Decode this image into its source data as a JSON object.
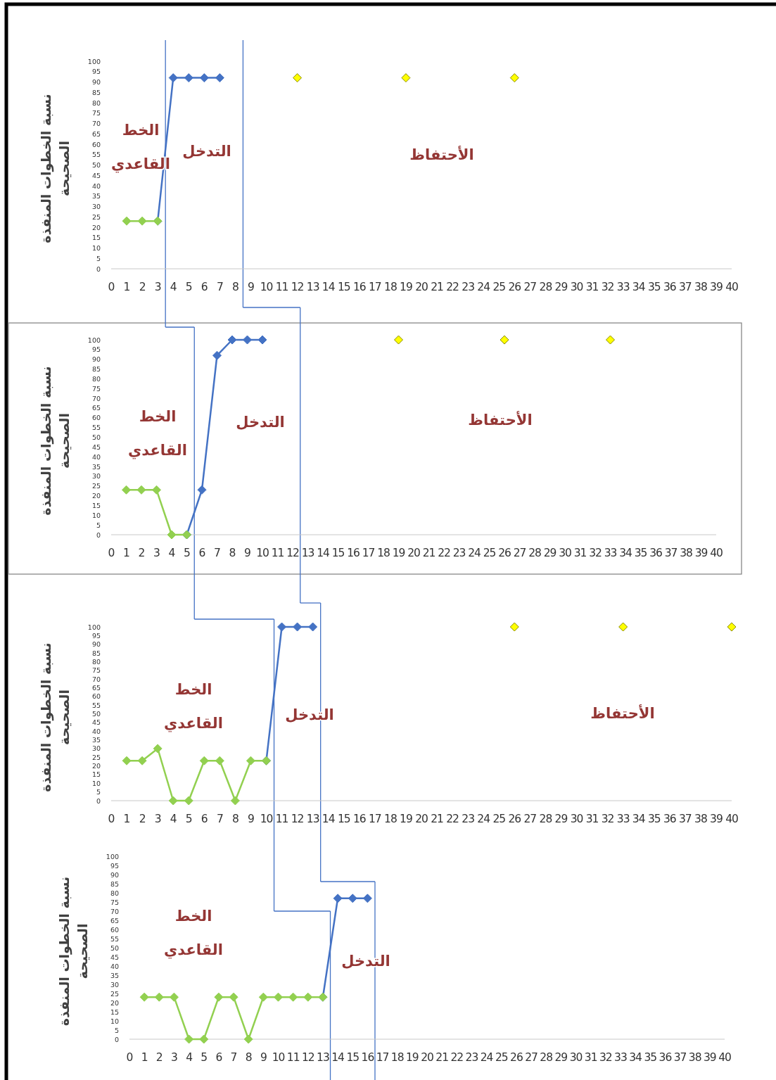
{
  "chart_data": [
    {
      "type": "line",
      "ylabel": "نسبة الخطوات المنفذة الصحيحة",
      "xlim": [
        0,
        40
      ],
      "ylim": [
        0,
        100
      ],
      "xticks": [
        0,
        1,
        2,
        3,
        4,
        5,
        6,
        7,
        8,
        9,
        10,
        11,
        12,
        13,
        14,
        15,
        16,
        17,
        18,
        19,
        20,
        21,
        22,
        23,
        24,
        25,
        26,
        27,
        28,
        29,
        30,
        31,
        32,
        33,
        34,
        35,
        36,
        37,
        38,
        39,
        40
      ],
      "yticks": [
        0,
        5,
        10,
        15,
        20,
        25,
        30,
        35,
        40,
        45,
        50,
        55,
        60,
        65,
        70,
        75,
        80,
        85,
        90,
        95,
        100
      ],
      "grid": false,
      "marker": "diamond",
      "series": [
        {
          "type": "line",
          "color": "#92d050",
          "x": [
            1,
            2,
            3
          ],
          "values": [
            23,
            23,
            23
          ]
        },
        {
          "type": "line",
          "color": "#4472c4",
          "x": [
            3,
            4,
            5,
            6,
            7
          ],
          "values": [
            23,
            92,
            92,
            92,
            92
          ]
        },
        {
          "type": "scatter",
          "color": "#ffff00",
          "x": [
            12,
            19,
            26
          ],
          "values": [
            92,
            92,
            92
          ]
        }
      ],
      "ref_lines": [
        {
          "axis": "x",
          "value": 3.5,
          "color": "#4472c4"
        },
        {
          "axis": "x",
          "value": 8.5,
          "color": "#4472c4"
        }
      ],
      "annotations": [
        "الخط القاعدي",
        "التدخل",
        "الأحتفاظ"
      ]
    },
    {
      "type": "line",
      "ylabel": "نسبة الخطوات المنفذة الصحيحة",
      "xlim": [
        0,
        40
      ],
      "ylim": [
        0,
        100
      ],
      "xticks": [
        0,
        1,
        2,
        3,
        4,
        5,
        6,
        7,
        8,
        9,
        10,
        11,
        12,
        13,
        14,
        15,
        16,
        17,
        18,
        19,
        20,
        21,
        22,
        23,
        24,
        25,
        26,
        27,
        28,
        29,
        30,
        31,
        32,
        33,
        34,
        35,
        36,
        37,
        38,
        39,
        40
      ],
      "yticks": [
        0,
        5,
        10,
        15,
        20,
        25,
        30,
        35,
        40,
        45,
        50,
        55,
        60,
        65,
        70,
        75,
        80,
        85,
        90,
        95,
        100
      ],
      "grid": false,
      "marker": "diamond",
      "series": [
        {
          "type": "line",
          "color": "#92d050",
          "x": [
            1,
            2,
            3,
            4,
            5
          ],
          "values": [
            23,
            23,
            23,
            0,
            0
          ]
        },
        {
          "type": "line",
          "color": "#4472c4",
          "x": [
            5,
            6,
            7,
            8,
            9,
            10
          ],
          "values": [
            0,
            23,
            92,
            100,
            100,
            100
          ]
        },
        {
          "type": "scatter",
          "color": "#ffff00",
          "x": [
            19,
            26,
            33
          ],
          "values": [
            100,
            100,
            100
          ]
        }
      ],
      "ref_lines": [
        {
          "axis": "x",
          "value": 5.5,
          "color": "#4472c4"
        },
        {
          "axis": "x",
          "value": 12.5,
          "color": "#4472c4"
        }
      ],
      "annotations": [
        "الخط القاعدي",
        "التدخل",
        "الأحتفاظ"
      ]
    },
    {
      "type": "line",
      "ylabel": "نسبة الخطوات المنفذة الصحيحة",
      "xlim": [
        0,
        40
      ],
      "ylim": [
        0,
        100
      ],
      "xticks": [
        0,
        1,
        2,
        3,
        4,
        5,
        6,
        7,
        8,
        9,
        10,
        11,
        12,
        13,
        14,
        15,
        16,
        17,
        18,
        19,
        20,
        21,
        22,
        23,
        24,
        25,
        26,
        27,
        28,
        29,
        30,
        31,
        32,
        33,
        34,
        35,
        36,
        37,
        38,
        39,
        40
      ],
      "yticks": [
        0,
        5,
        10,
        15,
        20,
        25,
        30,
        35,
        40,
        45,
        50,
        55,
        60,
        65,
        70,
        75,
        80,
        85,
        90,
        95,
        100
      ],
      "grid": false,
      "marker": "diamond",
      "series": [
        {
          "type": "line",
          "color": "#92d050",
          "x": [
            1,
            2,
            3,
            4,
            5,
            6,
            7,
            8,
            9,
            10
          ],
          "values": [
            23,
            23,
            30,
            0,
            0,
            23,
            23,
            0,
            23,
            23
          ]
        },
        {
          "type": "line",
          "color": "#4472c4",
          "x": [
            10,
            11,
            12,
            13
          ],
          "values": [
            23,
            100,
            100,
            100
          ]
        },
        {
          "type": "scatter",
          "color": "#ffff00",
          "x": [
            26,
            33,
            40
          ],
          "values": [
            100,
            100,
            100
          ]
        }
      ],
      "ref_lines": [
        {
          "axis": "x",
          "value": 10.5,
          "color": "#4472c4"
        },
        {
          "axis": "x",
          "value": 13.5,
          "color": "#4472c4"
        }
      ],
      "annotations": [
        "الخط القاعدي",
        "التدخل",
        "الأحتفاظ"
      ]
    },
    {
      "type": "line",
      "ylabel": "نسبة الخطوات المنفذة الصحيحة",
      "xlim": [
        0,
        40
      ],
      "ylim": [
        0,
        100
      ],
      "xticks": [
        0,
        1,
        2,
        3,
        4,
        5,
        6,
        7,
        8,
        9,
        10,
        11,
        12,
        13,
        14,
        15,
        16,
        17,
        18,
        19,
        20,
        21,
        22,
        23,
        24,
        25,
        26,
        27,
        28,
        29,
        30,
        31,
        32,
        33,
        34,
        35,
        36,
        37,
        38,
        39,
        40
      ],
      "yticks": [
        0,
        5,
        10,
        15,
        20,
        25,
        30,
        35,
        40,
        45,
        50,
        55,
        60,
        65,
        70,
        75,
        80,
        85,
        90,
        95,
        100
      ],
      "grid": false,
      "marker": "diamond",
      "series": [
        {
          "type": "line",
          "color": "#92d050",
          "x": [
            1,
            2,
            3,
            4,
            5,
            6,
            7,
            8,
            9,
            10,
            11,
            12,
            13
          ],
          "values": [
            23,
            23,
            23,
            0,
            0,
            23,
            23,
            0,
            23,
            23,
            23,
            23,
            23
          ]
        },
        {
          "type": "line",
          "color": "#4472c4",
          "x": [
            13,
            14,
            15,
            16
          ],
          "values": [
            23,
            77,
            77,
            77
          ]
        }
      ],
      "ref_lines": [
        {
          "axis": "x",
          "value": 13.5,
          "color": "#4472c4"
        },
        {
          "axis": "x",
          "value": 16.5,
          "color": "#4472c4"
        }
      ],
      "annotations": [
        "الخط القاعدي",
        "التدخل"
      ]
    }
  ]
}
